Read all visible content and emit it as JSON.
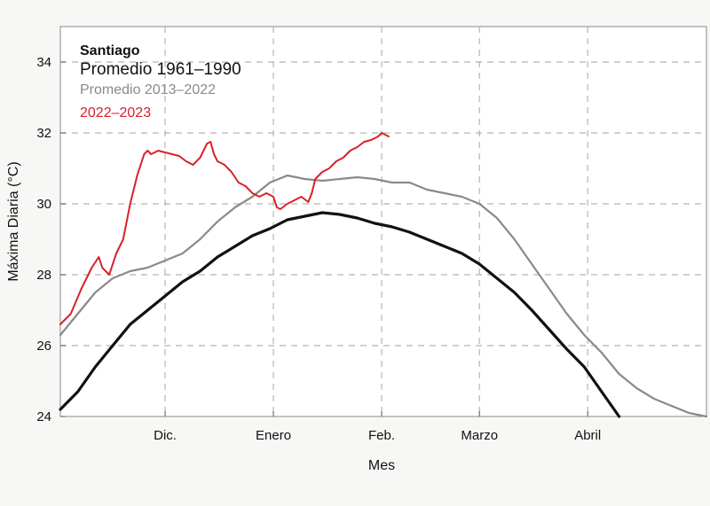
{
  "chart_data": {
    "type": "line",
    "title": "Santiago",
    "xlabel": "Mes",
    "ylabel": "Máxima Diaria  (°C)",
    "ylim": [
      24,
      35
    ],
    "xlim": [
      0,
      185
    ],
    "yticks": [
      24,
      26,
      28,
      30,
      32,
      34
    ],
    "xticks": [
      {
        "label": "Dic.",
        "x": 30
      },
      {
        "label": "Enero",
        "x": 61
      },
      {
        "label": "Feb.",
        "x": 92
      },
      {
        "label": "Marzo",
        "x": 120
      },
      {
        "label": "Abril",
        "x": 151
      }
    ],
    "grid": true,
    "legend_position": "top-left",
    "series": [
      {
        "name": "Promedio 1961–1990",
        "color": "#111111",
        "x": [
          0,
          5,
          10,
          15,
          20,
          25,
          30,
          35,
          40,
          45,
          50,
          55,
          60,
          65,
          70,
          75,
          80,
          85,
          90,
          95,
          100,
          105,
          110,
          115,
          120,
          125,
          130,
          135,
          140,
          145,
          150,
          155,
          160
        ],
        "y": [
          24.2,
          24.7,
          25.4,
          26.0,
          26.6,
          27.0,
          27.4,
          27.8,
          28.1,
          28.5,
          28.8,
          29.1,
          29.3,
          29.55,
          29.65,
          29.75,
          29.7,
          29.6,
          29.45,
          29.35,
          29.2,
          29.0,
          28.8,
          28.6,
          28.3,
          27.9,
          27.5,
          27.0,
          26.45,
          25.9,
          25.4,
          24.7,
          24.0
        ]
      },
      {
        "name": "Promedio 2013–2022",
        "color": "#8a8a8a",
        "x": [
          0,
          5,
          10,
          15,
          20,
          25,
          30,
          35,
          40,
          45,
          50,
          55,
          60,
          65,
          70,
          75,
          80,
          85,
          90,
          95,
          100,
          105,
          110,
          115,
          120,
          125,
          130,
          135,
          140,
          145,
          150,
          155,
          160,
          165,
          170,
          175,
          180,
          185
        ],
        "y": [
          26.3,
          26.9,
          27.5,
          27.9,
          28.1,
          28.2,
          28.4,
          28.6,
          29.0,
          29.5,
          29.9,
          30.2,
          30.6,
          30.8,
          30.7,
          30.65,
          30.7,
          30.75,
          30.7,
          30.6,
          30.6,
          30.4,
          30.3,
          30.2,
          30.0,
          29.6,
          29.0,
          28.3,
          27.6,
          26.9,
          26.3,
          25.8,
          25.2,
          24.8,
          24.5,
          24.3,
          24.1,
          24.0
        ]
      },
      {
        "name": "2022–2023",
        "color": "#d9202c",
        "x": [
          0,
          3,
          6,
          9,
          11,
          12,
          14,
          16,
          18,
          20,
          22,
          24,
          25,
          26,
          28,
          30,
          32,
          34,
          36,
          38,
          40,
          42,
          43,
          44,
          45,
          47,
          49,
          51,
          53,
          55,
          57,
          59,
          61,
          62,
          63,
          65,
          67,
          69,
          71,
          72,
          73,
          75,
          77,
          79,
          81,
          83,
          85,
          87,
          89,
          90,
          91,
          92,
          93,
          94
        ],
        "y": [
          26.6,
          26.9,
          27.6,
          28.2,
          28.5,
          28.2,
          28.0,
          28.6,
          29.0,
          30.0,
          30.8,
          31.4,
          31.5,
          31.4,
          31.5,
          31.45,
          31.4,
          31.35,
          31.2,
          31.1,
          31.3,
          31.7,
          31.75,
          31.4,
          31.2,
          31.1,
          30.9,
          30.6,
          30.5,
          30.3,
          30.2,
          30.3,
          30.2,
          29.9,
          29.85,
          30.0,
          30.1,
          30.2,
          30.05,
          30.3,
          30.7,
          30.9,
          31.0,
          31.2,
          31.3,
          31.5,
          31.6,
          31.75,
          31.8,
          31.85,
          31.9,
          32.0,
          31.95,
          31.9
        ]
      }
    ]
  }
}
